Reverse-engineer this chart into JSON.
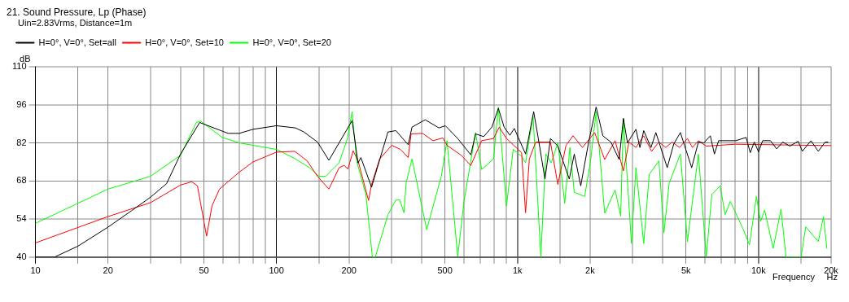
{
  "chart_data": {
    "type": "line",
    "title": "21. Sound Pressure, Lp (Phase)",
    "subtitle": "Uin=2.83Vrms, Distance=1m",
    "xlabel": "Frequency",
    "ylabel": "dB",
    "annotations": [
      "Hz"
    ],
    "log": "x",
    "grid": true,
    "legend": "top left",
    "xlim": [
      10,
      20000
    ],
    "ylim": [
      40,
      110
    ],
    "yticks": [
      40,
      54,
      68,
      82,
      96,
      110
    ],
    "xticks": [
      10,
      {
        "value": 15,
        "label": null
      },
      20,
      {
        "value": 30,
        "label": null
      },
      {
        "value": 40,
        "label": null
      },
      50,
      {
        "value": 60,
        "label": null
      },
      {
        "value": 70,
        "label": null
      },
      {
        "value": 80,
        "label": null
      },
      {
        "value": 90,
        "label": null
      },
      100,
      {
        "value": 150,
        "label": null
      },
      200,
      {
        "value": 300,
        "label": null
      },
      {
        "value": 400,
        "label": null
      },
      500,
      {
        "value": 600,
        "label": null
      },
      {
        "value": 700,
        "label": null
      },
      {
        "value": 800,
        "label": null
      },
      {
        "value": 900,
        "label": null
      },
      {
        "value": 1000,
        "label": "1k"
      },
      {
        "value": 1500,
        "label": null
      },
      {
        "value": 2000,
        "label": "2k"
      },
      {
        "value": 3000,
        "label": null
      },
      {
        "value": 4000,
        "label": null
      },
      {
        "value": 5000,
        "label": "5k"
      },
      {
        "value": 6000,
        "label": null
      },
      {
        "value": 7000,
        "label": null
      },
      {
        "value": 8000,
        "label": null
      },
      {
        "value": 9000,
        "label": null
      },
      {
        "value": 10000,
        "label": "10k"
      },
      {
        "value": 15000,
        "label": null
      },
      {
        "value": 20000,
        "label": "20k"
      }
    ],
    "series": [
      {
        "name": "H=0°, V=0°, Set=all",
        "color": "#000000",
        "x": [
          10,
          12,
          15,
          20,
          25,
          30,
          35,
          40,
          48,
          63,
          70,
          80,
          100,
          120,
          130,
          148,
          165,
          206,
          218,
          224,
          248,
          290,
          313,
          352,
          365,
          414,
          472,
          502,
          565,
          640,
          670,
          724,
          783,
          833,
          880,
          930,
          970,
          1080,
          1167,
          1220,
          1300,
          1370,
          1470,
          1640,
          1720,
          1830,
          1970,
          2120,
          2260,
          2440,
          2640,
          2750,
          2860,
          3100,
          3220,
          3340,
          3580,
          3750,
          4180,
          4450,
          4740,
          4930,
          5280,
          5630,
          5930,
          6310,
          6560,
          6830,
          8050,
          8880,
          9240,
          9600,
          10000,
          10400,
          11200,
          11900,
          12600,
          13500,
          14600,
          15200,
          16500,
          17700,
          18900,
          19400
        ],
        "values": [
          40,
          40,
          44,
          51,
          57,
          62,
          67,
          77.9,
          89.5,
          85.5,
          85.5,
          87,
          88.3,
          87.5,
          86,
          82.3,
          75.6,
          90.2,
          74.6,
          76.6,
          65.7,
          86,
          86.5,
          81.3,
          87.8,
          90.5,
          87.5,
          88.3,
          83.6,
          77.6,
          85.3,
          84.3,
          87.8,
          94.7,
          87.8,
          84.8,
          87.3,
          77.9,
          93.5,
          83.6,
          68.7,
          83.6,
          80.8,
          68.7,
          77.9,
          66.2,
          82,
          95.2,
          84.6,
          82.3,
          75.9,
          91,
          82,
          87,
          80.3,
          86.5,
          80.3,
          85.8,
          72.9,
          81.6,
          85.8,
          81.1,
          72.9,
          82.3,
          82,
          84.6,
          77.9,
          82.8,
          82.8,
          84,
          78.4,
          82.3,
          78.7,
          82.8,
          82.8,
          79.8,
          82.3,
          80.8,
          82.6,
          78.9,
          82.8,
          78.9,
          82.3,
          82.3
        ]
      },
      {
        "name": "H=0°, V=0°, Set=10",
        "color": "#ff0000",
        "x": [
          10,
          20,
          30,
          40,
          44.5,
          47,
          51.3,
          54,
          58,
          70,
          80,
          100,
          119,
          134,
          148,
          165,
          182,
          191,
          198,
          208,
          218,
          241,
          248,
          268,
          301,
          327,
          352,
          362,
          404,
          446,
          490,
          510,
          585,
          640,
          710,
          795,
          840,
          900,
          1040,
          1080,
          1120,
          1190,
          1370,
          1470,
          1590,
          1700,
          1860,
          2090,
          2300,
          2540,
          2750,
          2900,
          3100,
          3340,
          3600,
          3860,
          4120,
          4380,
          4700,
          5070,
          5320,
          5630,
          6070,
          8000,
          20000
        ],
        "values": [
          45.2,
          54.9,
          60,
          66.5,
          67.7,
          66.2,
          47.7,
          58.8,
          65,
          71.2,
          75,
          78.6,
          78.9,
          75.4,
          69.7,
          65,
          72.9,
          73.7,
          72.4,
          79.1,
          75.4,
          60.8,
          66.7,
          76.1,
          81.1,
          79.6,
          76.6,
          85.3,
          85.5,
          82.8,
          83.8,
          81.1,
          77.4,
          73.7,
          82.8,
          83.6,
          87.8,
          83.6,
          78.4,
          56.3,
          76.1,
          82.3,
          82.3,
          66.7,
          81.1,
          84.6,
          80.3,
          85.8,
          75.9,
          82.8,
          71.7,
          82.3,
          80.3,
          84.6,
          78.9,
          82.3,
          80.3,
          82.3,
          80.3,
          83.6,
          80.3,
          82.8,
          80.8,
          81.5,
          81
        ]
      },
      {
        "name": "H=0°, V=0°, Set=20",
        "color": "#00ff00",
        "x": [
          10,
          20,
          30,
          40,
          46.5,
          48.5,
          59.6,
          70,
          100,
          120,
          137,
          150,
          160,
          182,
          197,
          206,
          215,
          235,
          250,
          257,
          290,
          313,
          325,
          338,
          345,
          365,
          420,
          483,
          510,
          565,
          600,
          670,
          710,
          795,
          833,
          900,
          960,
          1040,
          1080,
          1160,
          1250,
          1310,
          1380,
          1470,
          1570,
          1650,
          1720,
          1900,
          2010,
          2120,
          2300,
          2540,
          2680,
          2750,
          2970,
          3100,
          3340,
          3520,
          3860,
          4050,
          4260,
          4740,
          5070,
          5630,
          6070,
          6400,
          6930,
          7270,
          7640,
          8600,
          9170,
          9800,
          10200,
          10600,
          11500,
          12400,
          13000,
          15000,
          15700,
          17700,
          18600,
          19200
        ],
        "values": [
          52.4,
          65,
          69.7,
          77.4,
          89.5,
          90,
          84,
          82,
          79.6,
          76.1,
          72.9,
          69.7,
          69.7,
          74.7,
          83.6,
          93.5,
          75.4,
          63,
          40,
          40,
          55.6,
          61,
          61,
          56.3,
          67.2,
          76.1,
          50.1,
          69.7,
          82.8,
          40.2,
          60.5,
          85.8,
          72.2,
          76.1,
          95.2,
          58.8,
          79.6,
          77.1,
          74.7,
          92,
          40,
          77.9,
          74.7,
          82,
          59.8,
          80.3,
          63.8,
          62.3,
          75.4,
          93.5,
          56.1,
          64.7,
          55.1,
          91,
          45,
          72.9,
          45,
          70.4,
          75.4,
          48.9,
          67.2,
          77.9,
          45.7,
          77.9,
          40,
          63,
          66.2,
          55.6,
          60.5,
          50.6,
          44.5,
          62.3,
          53.1,
          57.3,
          43.2,
          57.6,
          40,
          40,
          51.1,
          45.7,
          54.9,
          43.2
        ]
      }
    ]
  }
}
